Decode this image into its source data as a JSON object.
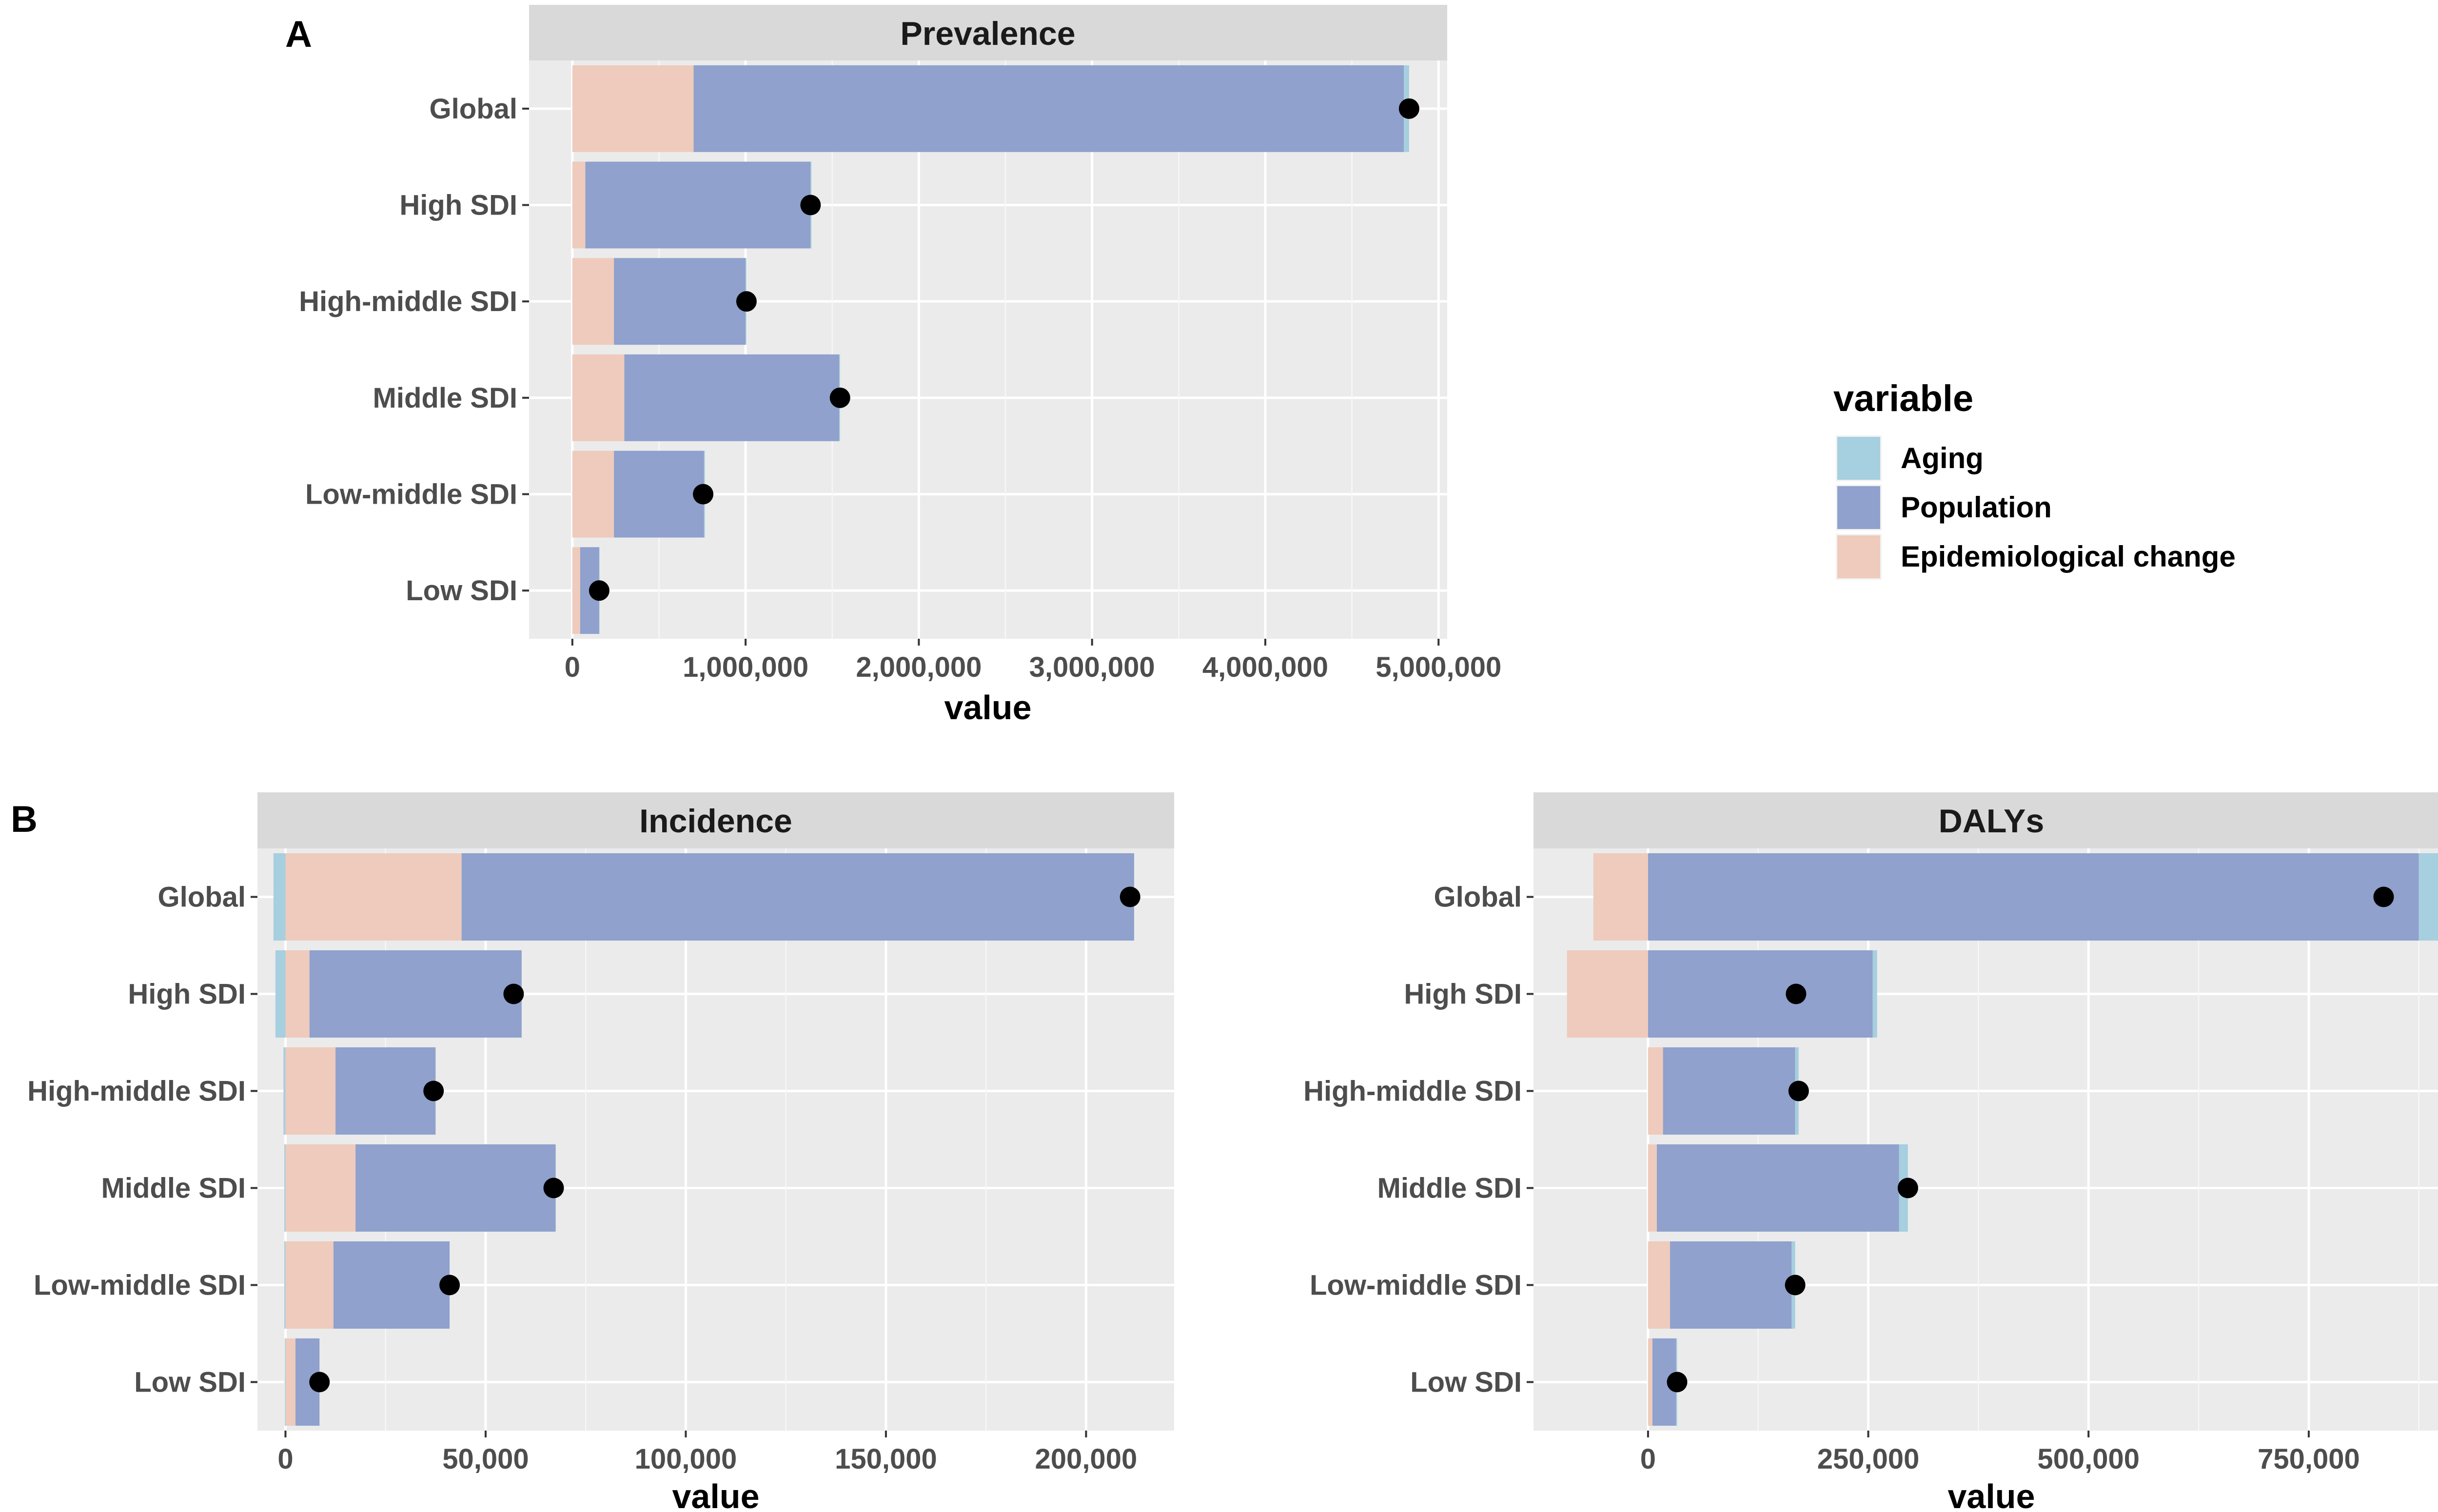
{
  "chart_data": [
    {
      "type": "bar",
      "orientation": "horizontal",
      "stacked": true,
      "panel_label": "A",
      "title": "Prevalence",
      "xlabel": "value",
      "ylabel": "",
      "xlim": [
        -250000,
        5050000
      ],
      "xticks": [
        0,
        1000000,
        2000000,
        3000000,
        4000000,
        5000000
      ],
      "xtick_labels": [
        "0",
        "1,000,000",
        "2,000,000",
        "3,000,000",
        "4,000,000",
        "5,000,000"
      ],
      "categories": [
        "Global",
        "High SDI",
        "High-middle SDI",
        "Middle SDI",
        "Low-middle SDI",
        "Low SDI"
      ],
      "series": [
        {
          "name": "Epidemiological change",
          "values": [
            700000,
            75000,
            240000,
            300000,
            240000,
            45000
          ]
        },
        {
          "name": "Population",
          "values": [
            4100000,
            1300000,
            760000,
            1240000,
            520000,
            110000
          ]
        },
        {
          "name": "Aging",
          "values": [
            30000,
            5000,
            5000,
            5000,
            5000,
            2000
          ]
        }
      ],
      "total_change": [
        4830000,
        1375000,
        1005000,
        1545000,
        755000,
        155000
      ]
    },
    {
      "type": "bar",
      "orientation": "horizontal",
      "stacked": true,
      "panel_label": "B",
      "title": "Incidence",
      "xlabel": "value",
      "ylabel": "",
      "xlim": [
        -7000,
        222000
      ],
      "xticks": [
        0,
        50000,
        100000,
        150000,
        200000
      ],
      "xtick_labels": [
        "0",
        "50,000",
        "100,000",
        "150,000",
        "200,000"
      ],
      "categories": [
        "Global",
        "High SDI",
        "High-middle SDI",
        "Middle SDI",
        "Low-middle SDI",
        "Low SDI"
      ],
      "series": [
        {
          "name": "Epidemiological change",
          "values": [
            44000,
            6000,
            12500,
            17500,
            12000,
            2500
          ]
        },
        {
          "name": "Population",
          "values": [
            168000,
            53000,
            25000,
            50000,
            29000,
            6000
          ]
        },
        {
          "name": "Aging",
          "values": [
            -3000,
            -2500,
            -500,
            -300,
            -300,
            -200
          ]
        }
      ],
      "total_change": [
        211000,
        57000,
        37000,
        67000,
        41000,
        8500
      ]
    },
    {
      "type": "bar",
      "orientation": "horizontal",
      "stacked": true,
      "panel_label": "",
      "title": "DALYs",
      "xlabel": "value",
      "ylabel": "",
      "xlim": [
        -130000,
        910000
      ],
      "xticks": [
        0,
        250000,
        500000,
        750000
      ],
      "xtick_labels": [
        "0",
        "250,000",
        "500,000",
        "750,000"
      ],
      "categories": [
        "Global",
        "High SDI",
        "High-middle SDI",
        "Middle SDI",
        "Low-middle SDI",
        "Low SDI"
      ],
      "series": [
        {
          "name": "Epidemiological change",
          "values": [
            -62000,
            -92000,
            17000,
            10000,
            25000,
            5000
          ]
        },
        {
          "name": "Population",
          "values": [
            875000,
            255000,
            150000,
            275000,
            138000,
            27000
          ]
        },
        {
          "name": "Aging",
          "values": [
            22000,
            5000,
            4000,
            10000,
            4000,
            1000
          ]
        }
      ],
      "total_change": [
        835000,
        168000,
        171000,
        295000,
        167000,
        33000
      ]
    }
  ],
  "legend": {
    "title": "variable",
    "items": [
      {
        "label": "Aging",
        "color": "#a6cfdf"
      },
      {
        "label": "Population",
        "color": "#8fa1cc"
      },
      {
        "label": "Epidemiological change",
        "color": "#eecbbc"
      }
    ]
  },
  "colors": {
    "Aging": "#a6cfdf",
    "Population": "#8fa1cc",
    "Epidemiological change": "#eecbbc",
    "total_marker": "#000000"
  }
}
